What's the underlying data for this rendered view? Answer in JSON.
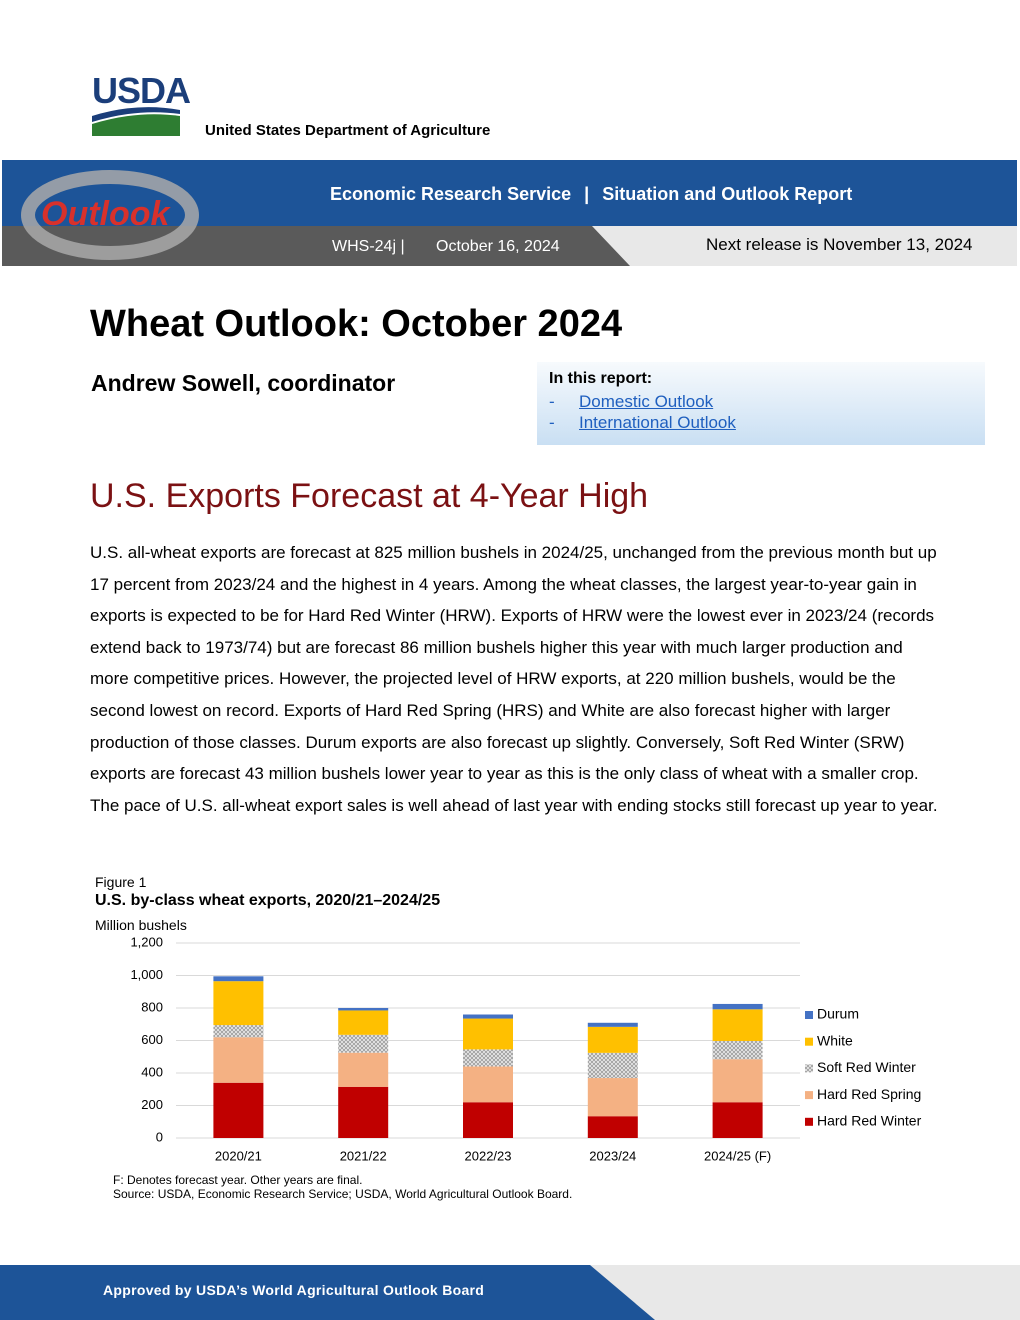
{
  "header": {
    "logo": "USDA",
    "agency": "United States Department of Agriculture",
    "outlook_logo": "Outlook",
    "service": "Economic Research Service",
    "separator": "|",
    "series": "Situation and Outlook Report",
    "report_id": "WHS-24j |",
    "date": "October 16, 2024",
    "next_release": "Next release is November 13, 2024"
  },
  "title": "Wheat Outlook: October 2024",
  "author": "Andrew Sowell, coordinator",
  "in_this_report": {
    "heading": "In this report:",
    "items": [
      {
        "marker": "-",
        "text": "Domestic Outlook"
      },
      {
        "marker": "-",
        "text": "International Outlook"
      }
    ]
  },
  "section": {
    "heading": "U.S. Exports Forecast at 4-Year High",
    "paragraph": "U.S. all-wheat exports are forecast at 825 million bushels in 2024/25, unchanged from the previous month but up 17 percent from 2023/24 and the highest in 4 years. Among the wheat classes, the largest year-to-year gain in exports is expected to be for Hard Red Winter (HRW). Exports of HRW were the lowest ever in 2023/24 (records extend back to 1973/74) but are forecast 86 million bushels higher this year with much larger production and more competitive prices. However, the projected level of HRW exports, at 220 million bushels, would be the second lowest on record. Exports of Hard Red Spring (HRS) and White are also forecast higher with larger production of those classes. Durum exports are also forecast up slightly. Conversely, Soft Red Winter (SRW) exports are forecast 43 million bushels lower year to year as this is the only class of wheat with a smaller crop. The pace of U.S. all-wheat export sales is well ahead of last year with ending stocks still forecast up year to year."
  },
  "figure": {
    "label": "Figure 1",
    "notes": [
      "F: Denotes forecast year. Other years are final.",
      "Source: USDA, Economic Research Service; USDA, World Agricultural Outlook Board."
    ]
  },
  "chart_data": {
    "type": "stacked-bar",
    "title": "U.S. by-class wheat exports, 2020/21–2024/25",
    "y_label": "Million bushels",
    "categories": [
      "2020/21",
      "2021/22",
      "2022/23",
      "2023/24",
      "2024/25 (F)"
    ],
    "series": [
      {
        "name": "Hard Red Winter",
        "color": "#c00000",
        "values": [
          340,
          315,
          220,
          134,
          220
        ]
      },
      {
        "name": "Hard Red Spring",
        "color": "#f4b183",
        "values": [
          280,
          210,
          220,
          235,
          265
        ]
      },
      {
        "name": "Soft Red Winter",
        "color": "#a6a6a6",
        "hatch": true,
        "values": [
          75,
          110,
          105,
          155,
          112
        ]
      },
      {
        "name": "White",
        "color": "#ffc000",
        "values": [
          270,
          150,
          190,
          160,
          195
        ]
      },
      {
        "name": "Durum",
        "color": "#4472c4",
        "values": [
          30,
          15,
          25,
          25,
          33
        ]
      }
    ],
    "ylim": [
      0,
      1200
    ],
    "yticks": [
      0,
      200,
      400,
      600,
      800,
      {
        "value": 1000,
        "label": "1,000"
      },
      {
        "value": 1200,
        "label": "1,200"
      }
    ],
    "grid": true,
    "legend": "right"
  },
  "footer": "Approved by USDA’s World Agricultural Outlook Board"
}
